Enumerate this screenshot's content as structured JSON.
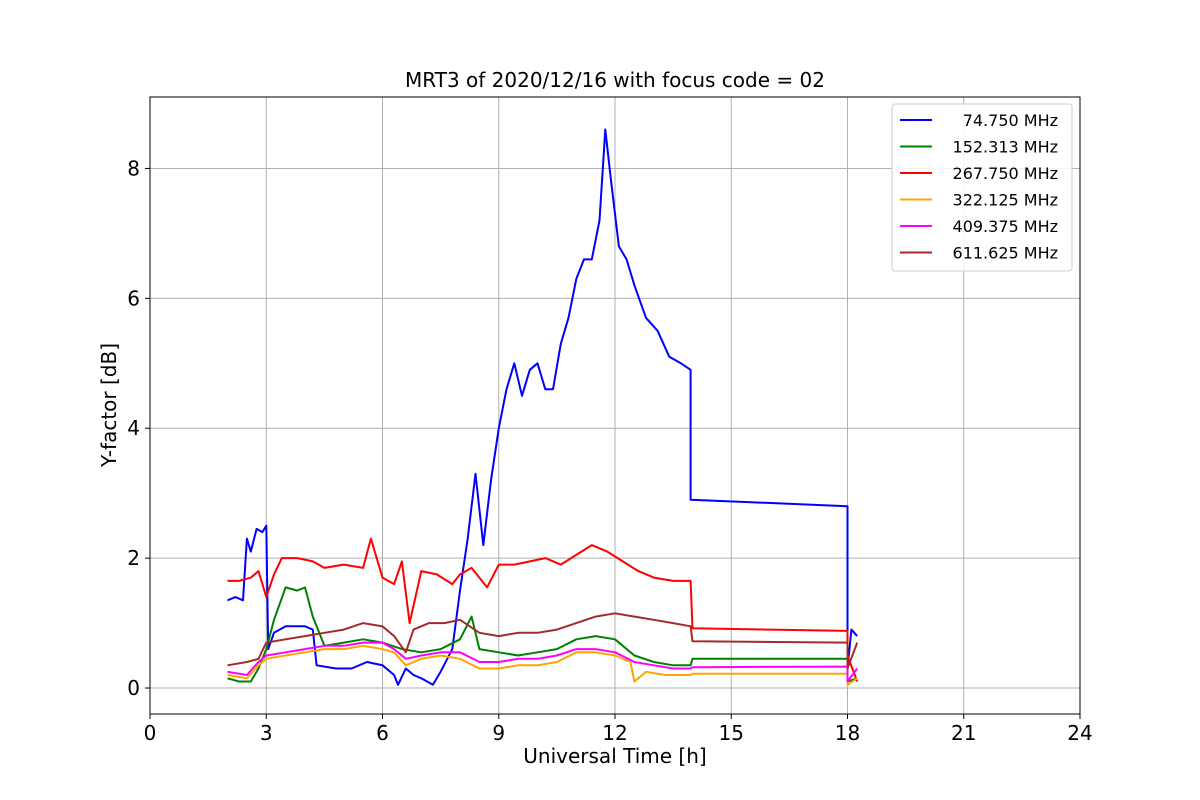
{
  "chart_data": {
    "type": "line",
    "title": "MRT3 of 2020/12/16 with focus code = 02",
    "xlabel": "Universal Time [h]",
    "ylabel": "Y-factor [dB]",
    "xlim": [
      0,
      24
    ],
    "ylim": [
      -0.4,
      9.1
    ],
    "xticks": [
      0,
      3,
      6,
      9,
      12,
      15,
      18,
      21,
      24
    ],
    "yticks": [
      0,
      2,
      4,
      6,
      8
    ],
    "grid": true,
    "legend_position": "top-right",
    "series": [
      {
        "name": "74.750 MHz",
        "color": "#0000ff",
        "points": [
          [
            2.0,
            1.35
          ],
          [
            2.2,
            1.4
          ],
          [
            2.4,
            1.35
          ],
          [
            2.5,
            2.3
          ],
          [
            2.6,
            2.1
          ],
          [
            2.75,
            2.45
          ],
          [
            2.9,
            2.4
          ],
          [
            3.0,
            2.5
          ],
          [
            3.05,
            0.6
          ],
          [
            3.2,
            0.85
          ],
          [
            3.5,
            0.95
          ],
          [
            4.0,
            0.95
          ],
          [
            4.2,
            0.9
          ],
          [
            4.3,
            0.35
          ],
          [
            4.8,
            0.3
          ],
          [
            5.2,
            0.3
          ],
          [
            5.6,
            0.4
          ],
          [
            6.0,
            0.35
          ],
          [
            6.3,
            0.2
          ],
          [
            6.4,
            0.05
          ],
          [
            6.6,
            0.3
          ],
          [
            6.8,
            0.2
          ],
          [
            7.0,
            0.15
          ],
          [
            7.3,
            0.05
          ],
          [
            7.5,
            0.25
          ],
          [
            7.8,
            0.6
          ],
          [
            8.0,
            1.5
          ],
          [
            8.2,
            2.3
          ],
          [
            8.4,
            3.3
          ],
          [
            8.6,
            2.2
          ],
          [
            8.8,
            3.2
          ],
          [
            9.0,
            4.0
          ],
          [
            9.2,
            4.6
          ],
          [
            9.4,
            5.0
          ],
          [
            9.6,
            4.5
          ],
          [
            9.8,
            4.9
          ],
          [
            10.0,
            5.0
          ],
          [
            10.2,
            4.6
          ],
          [
            10.4,
            4.6
          ],
          [
            10.6,
            5.3
          ],
          [
            10.8,
            5.7
          ],
          [
            11.0,
            6.3
          ],
          [
            11.2,
            6.6
          ],
          [
            11.4,
            6.6
          ],
          [
            11.6,
            7.2
          ],
          [
            11.75,
            8.6
          ],
          [
            11.9,
            7.8
          ],
          [
            12.1,
            6.8
          ],
          [
            12.3,
            6.6
          ],
          [
            12.5,
            6.2
          ],
          [
            12.8,
            5.7
          ],
          [
            13.1,
            5.5
          ],
          [
            13.4,
            5.1
          ],
          [
            13.7,
            5.0
          ],
          [
            13.95,
            4.9
          ],
          [
            13.95,
            2.9
          ],
          [
            18.0,
            2.8
          ],
          [
            18.0,
            0.3
          ],
          [
            18.1,
            0.9
          ],
          [
            18.25,
            0.8
          ]
        ]
      },
      {
        "name": "152.313 MHz",
        "color": "#008000",
        "points": [
          [
            2.0,
            0.15
          ],
          [
            2.3,
            0.1
          ],
          [
            2.6,
            0.1
          ],
          [
            2.8,
            0.3
          ],
          [
            3.0,
            0.6
          ],
          [
            3.2,
            1.05
          ],
          [
            3.5,
            1.55
          ],
          [
            3.8,
            1.5
          ],
          [
            4.0,
            1.55
          ],
          [
            4.2,
            1.1
          ],
          [
            4.5,
            0.65
          ],
          [
            5.0,
            0.7
          ],
          [
            5.5,
            0.75
          ],
          [
            6.0,
            0.7
          ],
          [
            6.5,
            0.6
          ],
          [
            7.0,
            0.55
          ],
          [
            7.5,
            0.6
          ],
          [
            8.0,
            0.75
          ],
          [
            8.3,
            1.1
          ],
          [
            8.5,
            0.6
          ],
          [
            9.0,
            0.55
          ],
          [
            9.5,
            0.5
          ],
          [
            10.0,
            0.55
          ],
          [
            10.5,
            0.6
          ],
          [
            11.0,
            0.75
          ],
          [
            11.5,
            0.8
          ],
          [
            12.0,
            0.75
          ],
          [
            12.5,
            0.5
          ],
          [
            13.0,
            0.4
          ],
          [
            13.5,
            0.35
          ],
          [
            13.95,
            0.35
          ],
          [
            14.0,
            0.45
          ],
          [
            18.0,
            0.45
          ],
          [
            18.0,
            0.1
          ],
          [
            18.25,
            0.15
          ]
        ]
      },
      {
        "name": "267.750 MHz",
        "color": "#ff0000",
        "points": [
          [
            2.0,
            1.65
          ],
          [
            2.3,
            1.65
          ],
          [
            2.6,
            1.7
          ],
          [
            2.8,
            1.8
          ],
          [
            3.0,
            1.4
          ],
          [
            3.2,
            1.75
          ],
          [
            3.4,
            2.0
          ],
          [
            3.8,
            2.0
          ],
          [
            4.2,
            1.95
          ],
          [
            4.5,
            1.85
          ],
          [
            5.0,
            1.9
          ],
          [
            5.5,
            1.85
          ],
          [
            5.7,
            2.3
          ],
          [
            6.0,
            1.7
          ],
          [
            6.3,
            1.6
          ],
          [
            6.5,
            1.95
          ],
          [
            6.7,
            1.0
          ],
          [
            7.0,
            1.8
          ],
          [
            7.4,
            1.75
          ],
          [
            7.8,
            1.6
          ],
          [
            8.0,
            1.75
          ],
          [
            8.3,
            1.85
          ],
          [
            8.7,
            1.55
          ],
          [
            9.0,
            1.9
          ],
          [
            9.4,
            1.9
          ],
          [
            9.8,
            1.95
          ],
          [
            10.2,
            2.0
          ],
          [
            10.6,
            1.9
          ],
          [
            11.0,
            2.05
          ],
          [
            11.4,
            2.2
          ],
          [
            11.8,
            2.1
          ],
          [
            12.2,
            1.95
          ],
          [
            12.6,
            1.8
          ],
          [
            13.0,
            1.7
          ],
          [
            13.5,
            1.65
          ],
          [
            13.95,
            1.65
          ],
          [
            14.0,
            0.92
          ],
          [
            18.0,
            0.88
          ],
          [
            18.0,
            0.5
          ],
          [
            18.25,
            0.1
          ]
        ]
      },
      {
        "name": "322.125 MHz",
        "color": "#ffa500",
        "points": [
          [
            2.0,
            0.2
          ],
          [
            2.5,
            0.15
          ],
          [
            2.8,
            0.35
          ],
          [
            3.0,
            0.45
          ],
          [
            3.5,
            0.5
          ],
          [
            4.0,
            0.55
          ],
          [
            4.5,
            0.6
          ],
          [
            5.0,
            0.6
          ],
          [
            5.5,
            0.65
          ],
          [
            6.0,
            0.6
          ],
          [
            6.3,
            0.55
          ],
          [
            6.6,
            0.35
          ],
          [
            7.0,
            0.45
          ],
          [
            7.5,
            0.5
          ],
          [
            8.0,
            0.45
          ],
          [
            8.5,
            0.3
          ],
          [
            9.0,
            0.3
          ],
          [
            9.5,
            0.35
          ],
          [
            10.0,
            0.35
          ],
          [
            10.5,
            0.4
          ],
          [
            11.0,
            0.55
          ],
          [
            11.5,
            0.55
          ],
          [
            12.0,
            0.5
          ],
          [
            12.4,
            0.4
          ],
          [
            12.5,
            0.1
          ],
          [
            12.8,
            0.25
          ],
          [
            13.3,
            0.2
          ],
          [
            13.95,
            0.2
          ],
          [
            14.0,
            0.22
          ],
          [
            18.0,
            0.22
          ],
          [
            18.0,
            0.05
          ],
          [
            18.25,
            0.15
          ]
        ]
      },
      {
        "name": "409.375 MHz",
        "color": "#ff00ff",
        "points": [
          [
            2.0,
            0.25
          ],
          [
            2.5,
            0.2
          ],
          [
            2.8,
            0.4
          ],
          [
            3.0,
            0.5
          ],
          [
            3.5,
            0.55
          ],
          [
            4.0,
            0.6
          ],
          [
            4.5,
            0.65
          ],
          [
            5.0,
            0.65
          ],
          [
            5.5,
            0.7
          ],
          [
            6.0,
            0.7
          ],
          [
            6.3,
            0.6
          ],
          [
            6.6,
            0.45
          ],
          [
            7.0,
            0.5
          ],
          [
            7.5,
            0.55
          ],
          [
            8.0,
            0.55
          ],
          [
            8.5,
            0.4
          ],
          [
            9.0,
            0.4
          ],
          [
            9.5,
            0.45
          ],
          [
            10.0,
            0.45
          ],
          [
            10.5,
            0.5
          ],
          [
            11.0,
            0.6
          ],
          [
            11.5,
            0.6
          ],
          [
            12.0,
            0.55
          ],
          [
            12.5,
            0.4
          ],
          [
            13.0,
            0.35
          ],
          [
            13.5,
            0.3
          ],
          [
            13.95,
            0.3
          ],
          [
            14.0,
            0.32
          ],
          [
            18.0,
            0.33
          ],
          [
            18.0,
            0.1
          ],
          [
            18.25,
            0.3
          ]
        ]
      },
      {
        "name": "611.625 MHz",
        "color": "#a52a2a",
        "points": [
          [
            2.0,
            0.35
          ],
          [
            2.5,
            0.4
          ],
          [
            2.8,
            0.45
          ],
          [
            3.0,
            0.7
          ],
          [
            3.5,
            0.75
          ],
          [
            4.0,
            0.8
          ],
          [
            4.5,
            0.85
          ],
          [
            5.0,
            0.9
          ],
          [
            5.5,
            1.0
          ],
          [
            6.0,
            0.95
          ],
          [
            6.3,
            0.8
          ],
          [
            6.6,
            0.55
          ],
          [
            6.8,
            0.9
          ],
          [
            7.2,
            1.0
          ],
          [
            7.6,
            1.0
          ],
          [
            8.0,
            1.05
          ],
          [
            8.5,
            0.85
          ],
          [
            9.0,
            0.8
          ],
          [
            9.5,
            0.85
          ],
          [
            10.0,
            0.85
          ],
          [
            10.5,
            0.9
          ],
          [
            11.0,
            1.0
          ],
          [
            11.5,
            1.1
          ],
          [
            12.0,
            1.15
          ],
          [
            12.5,
            1.1
          ],
          [
            13.0,
            1.05
          ],
          [
            13.5,
            1.0
          ],
          [
            13.95,
            0.95
          ],
          [
            14.0,
            0.72
          ],
          [
            18.0,
            0.7
          ],
          [
            18.0,
            0.3
          ],
          [
            18.25,
            0.7
          ]
        ]
      }
    ]
  }
}
